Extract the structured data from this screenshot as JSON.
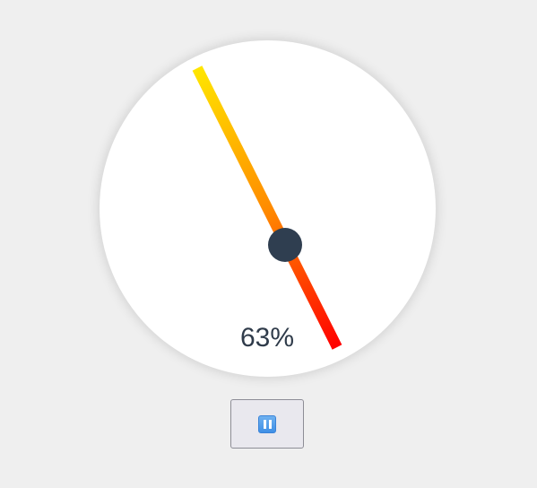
{
  "gauge": {
    "value_percent": 63,
    "display_text": "63%",
    "needle_colors": {
      "tip": "#ffe600",
      "mid": "#ff8c00",
      "tail": "#ff0000"
    },
    "hub_color": "#2f3e50"
  },
  "controls": {
    "pause_button": {
      "icon": "pause-icon",
      "accent": "#3f8fe6"
    }
  }
}
